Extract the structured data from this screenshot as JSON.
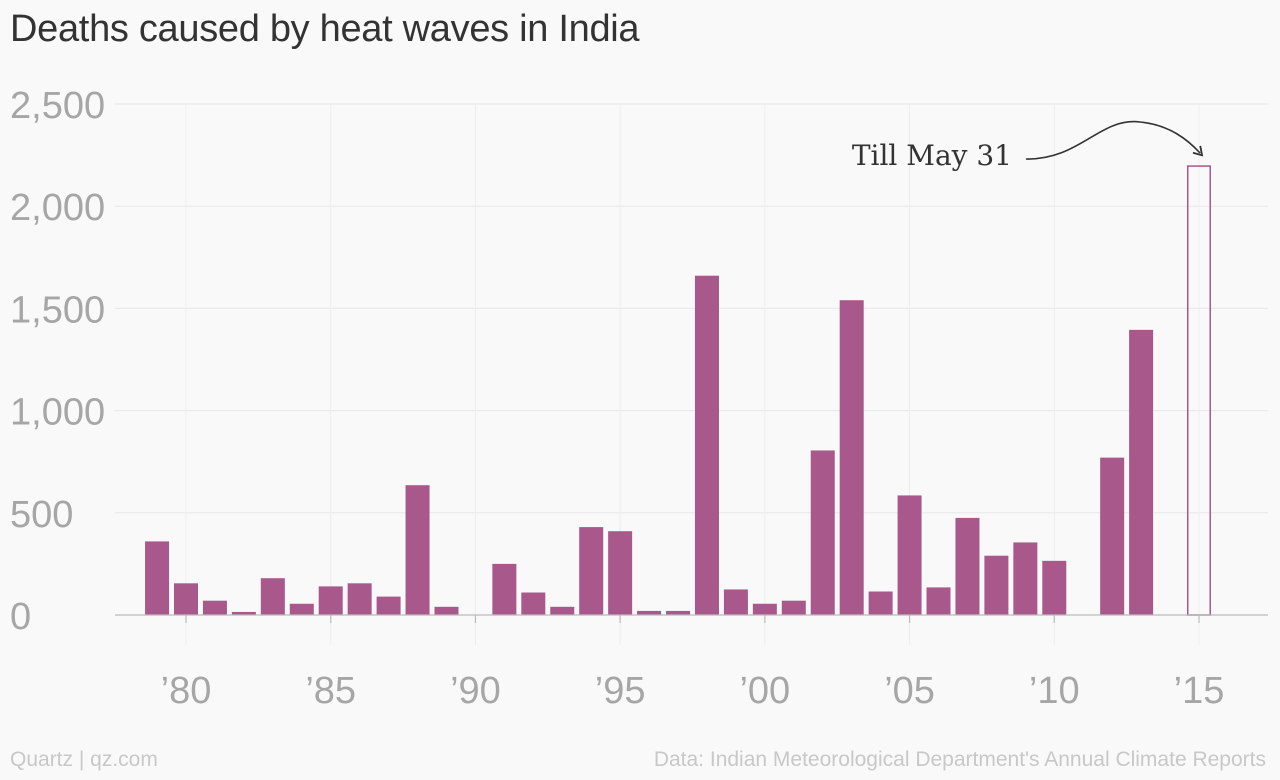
{
  "chart_data": {
    "type": "bar",
    "title": "Deaths caused by heat waves in India",
    "xlabel": "",
    "ylabel": "",
    "ylim": [
      0,
      2500
    ],
    "yticks": [
      0,
      500,
      1000,
      1500,
      2000,
      2500
    ],
    "ytick_labels": [
      "0",
      "500",
      "1,000",
      "1,500",
      "2,000",
      "2,500"
    ],
    "xticks": [
      1980,
      1985,
      1990,
      1995,
      2000,
      2005,
      2010,
      2015
    ],
    "xtick_labels": [
      "’80",
      "’85",
      "’90",
      "’95",
      "’00",
      "’05",
      "’10",
      "’15"
    ],
    "x": [
      1979,
      1980,
      1981,
      1982,
      1983,
      1984,
      1985,
      1986,
      1987,
      1988,
      1989,
      1990,
      1991,
      1992,
      1993,
      1994,
      1995,
      1996,
      1997,
      1998,
      1999,
      2000,
      2001,
      2002,
      2003,
      2004,
      2005,
      2006,
      2007,
      2008,
      2009,
      2010,
      2011,
      2012,
      2013,
      2015
    ],
    "values": [
      360,
      155,
      70,
      15,
      180,
      55,
      140,
      155,
      90,
      635,
      40,
      0,
      250,
      110,
      40,
      430,
      410,
      20,
      20,
      1660,
      125,
      55,
      70,
      805,
      1540,
      115,
      585,
      135,
      475,
      290,
      355,
      265,
      0,
      770,
      1395,
      2200
    ],
    "incomplete_year": 2015,
    "annotation": "Till May 31",
    "bar_color": "#a8588a",
    "grid": true
  },
  "footer": {
    "source": "Quartz | qz.com",
    "data_credit": "Data: Indian Meteorological Department's Annual Climate Reports"
  }
}
